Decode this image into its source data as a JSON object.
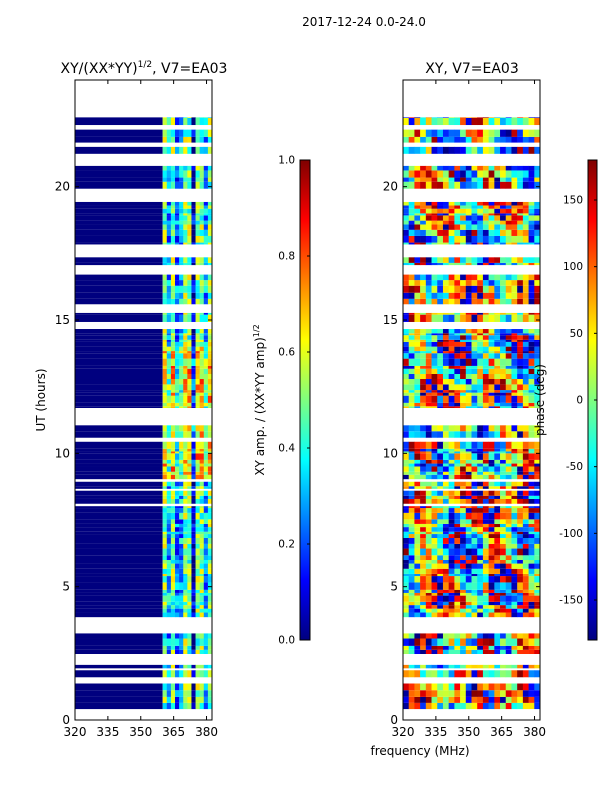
{
  "suptitle": "2017-12-24 0.0-24.0",
  "colors": {
    "background": "#ffffff",
    "axis": "#000000",
    "jet": [
      "#00007f",
      "#0000ff",
      "#007fff",
      "#00ffff",
      "#7fff7f",
      "#ffff00",
      "#ff7f00",
      "#ff0000",
      "#7f0000"
    ]
  },
  "chart_data": [
    {
      "type": "heatmap",
      "title_main": "XY/(XX*YY)",
      "title_sup": "1/2",
      "title_tail": ", V7=EA03",
      "xlabel": "",
      "ylabel": "UT (hours)",
      "xlim": [
        320,
        382.5
      ],
      "ylim": [
        0,
        24
      ],
      "xticks": [
        "320",
        "335",
        "350",
        "365",
        "380"
      ],
      "yticks": [
        "0",
        "5",
        "10",
        "15",
        "20"
      ],
      "colorbar": {
        "label_main": "XY amp. / (XX*YY amp)",
        "label_sup": "1/2",
        "range": [
          0.0,
          1.0
        ],
        "ticks": [
          "0.0",
          "0.2",
          "0.4",
          "0.6",
          "0.8",
          "1.0"
        ]
      },
      "data_time_range_hours": [
        0,
        22.6
      ],
      "flagged_low_band_MHz": [
        320,
        360
      ],
      "active_band_MHz": [
        360,
        382.5
      ],
      "low_band_value": 0.0
    },
    {
      "type": "heatmap",
      "title": "XY, V7=EA03",
      "xlabel": "frequency (MHz)",
      "ylabel": "",
      "xlim": [
        320,
        382.5
      ],
      "ylim": [
        0,
        24
      ],
      "xticks": [
        "320",
        "335",
        "350",
        "365",
        "380"
      ],
      "yticks": [
        "0",
        "5",
        "10",
        "15",
        "20"
      ],
      "colorbar": {
        "label": "phase (deg)",
        "range": [
          -180,
          180
        ],
        "ticks": [
          "-150",
          "-100",
          "-50",
          "0",
          "50",
          "100",
          "150"
        ]
      },
      "data_time_range_hours": [
        0,
        22.6
      ]
    }
  ]
}
